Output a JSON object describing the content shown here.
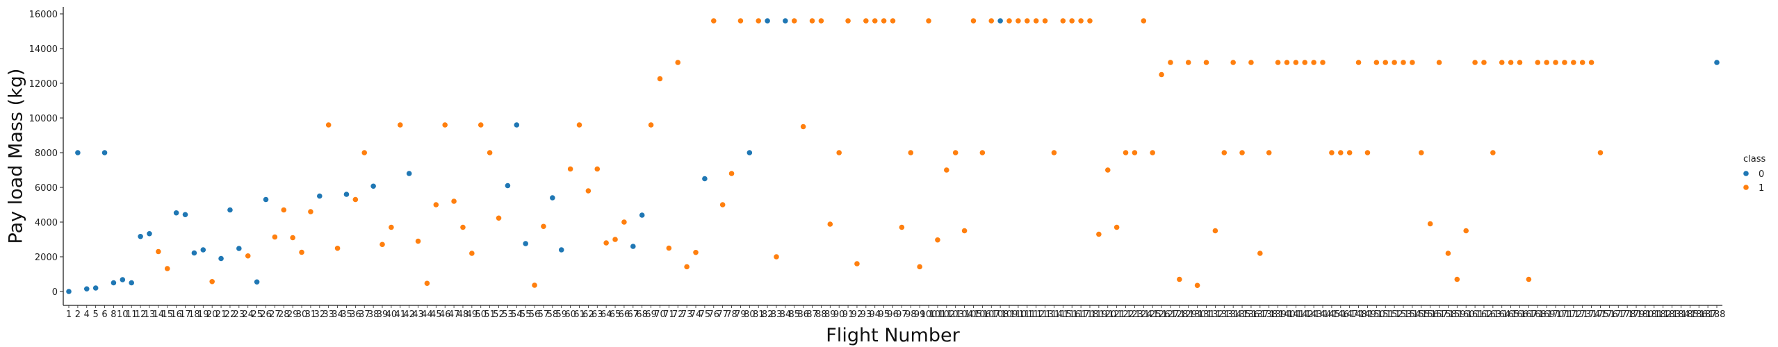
{
  "chart_data": {
    "type": "scatter",
    "title": "",
    "xlabel": "Flight Number",
    "ylabel": "Pay load Mass (kg)",
    "x_categories": [
      "1",
      "2",
      "4",
      "5",
      "6",
      "8",
      "10",
      "11",
      "12",
      "13",
      "14",
      "15",
      "16",
      "17",
      "18",
      "19",
      "20",
      "21",
      "22",
      "23",
      "24",
      "25",
      "26",
      "27",
      "28",
      "29",
      "30",
      "31",
      "32",
      "33",
      "34",
      "35",
      "36",
      "37",
      "38",
      "39",
      "40",
      "41",
      "42",
      "43",
      "44",
      "45",
      "46",
      "47",
      "48",
      "49",
      "50",
      "51",
      "52",
      "53",
      "54",
      "55",
      "56",
      "57",
      "58",
      "59",
      "60",
      "61",
      "62",
      "63",
      "64",
      "65",
      "66",
      "67",
      "68",
      "69",
      "70",
      "71",
      "72",
      "73",
      "74",
      "75",
      "76",
      "77",
      "78",
      "79",
      "80",
      "81",
      "82",
      "83",
      "84",
      "85",
      "86",
      "87",
      "88",
      "89",
      "90",
      "91",
      "92",
      "93",
      "94",
      "95",
      "96",
      "97",
      "98",
      "99",
      "100",
      "101",
      "102",
      "103",
      "104",
      "105",
      "106",
      "107",
      "108",
      "109",
      "110",
      "111",
      "112",
      "113",
      "114",
      "115",
      "116",
      "117",
      "118",
      "119",
      "120",
      "121",
      "122",
      "123",
      "124",
      "125",
      "126",
      "127",
      "128",
      "129",
      "130",
      "131",
      "132",
      "133",
      "134",
      "135",
      "136",
      "137",
      "138",
      "139",
      "140",
      "141",
      "142",
      "143",
      "144",
      "145",
      "146",
      "147",
      "148",
      "149",
      "150",
      "151",
      "152",
      "153",
      "154",
      "155",
      "156",
      "157",
      "158",
      "159",
      "160",
      "161",
      "162",
      "163",
      "164",
      "165",
      "166",
      "167",
      "168",
      "169",
      "170",
      "171",
      "172",
      "173",
      "174",
      "175",
      "176",
      "177",
      "178",
      "179",
      "180",
      "181",
      "182",
      "183",
      "184",
      "185",
      "186",
      "187",
      "188"
    ],
    "tick_labels": [
      "1",
      "2",
      "4",
      "5",
      "6",
      "8",
      "10",
      "11",
      "12",
      "13",
      "14",
      "15",
      "16",
      "17",
      "18",
      "19",
      "20",
      "21",
      "22",
      "23",
      "24",
      "25",
      "26",
      "27",
      "28",
      "29",
      "30",
      "31",
      "32",
      "33",
      "34",
      "35",
      "36",
      "37",
      "38",
      "39",
      "40",
      "41",
      "42",
      "43",
      "44",
      "45",
      "46",
      "47",
      "48",
      "49",
      "50",
      "51",
      "52",
      "53",
      "54",
      "55",
      "56",
      "57",
      "58",
      "59",
      "60",
      "61",
      "62",
      "63",
      "64",
      "65",
      "66",
      "67",
      "68",
      "69",
      "70",
      "71",
      "72",
      "73",
      "74",
      "75",
      "76",
      "77",
      "78",
      "79",
      "80",
      "81",
      "82",
      "83",
      "84",
      "85",
      "86",
      "87",
      "88",
      "89",
      "90",
      "91",
      "92",
      "93",
      "94",
      "95",
      "96",
      "97",
      "98",
      "99",
      "100",
      "101",
      "102",
      "103",
      "104",
      "105",
      "106",
      "107",
      "108",
      "109",
      "110",
      "111",
      "112",
      "113",
      "114",
      "115",
      "116",
      "117",
      "118",
      "119",
      "120",
      "121",
      "122",
      "123",
      "124",
      "125",
      "126",
      "127",
      "128",
      "129",
      "130",
      "131",
      "132",
      "133",
      "134",
      "135",
      "136",
      "137",
      "138",
      "139",
      "140",
      "141",
      "142",
      "143",
      "144",
      "145",
      "146",
      "147",
      "148",
      "149",
      "150",
      "151",
      "152",
      "153",
      "154",
      "155",
      "156",
      "157",
      "158",
      "159",
      "160",
      "161",
      "162",
      "163",
      "164",
      "165",
      "166",
      "167",
      "168",
      "169",
      "170",
      "171",
      "172",
      "173",
      "174",
      "175",
      "176",
      "177",
      "178",
      "179",
      "180",
      "181",
      "182",
      "183",
      "184",
      "185",
      "186",
      "187",
      "188"
    ],
    "ylim": [
      -800,
      16400
    ],
    "yticks": [
      0,
      2000,
      4000,
      6000,
      8000,
      10000,
      12000,
      14000,
      16000
    ],
    "legend": {
      "title": "class",
      "placement": "center-right",
      "entries": [
        "0",
        "1"
      ]
    },
    "colors": {
      "0": "#1f77b4",
      "1": "#ff7f0e"
    },
    "points": [
      {
        "x": "1",
        "y": 0,
        "class": "0"
      },
      {
        "x": "2",
        "y": 8000,
        "class": "0"
      },
      {
        "x": "4",
        "y": 150,
        "class": "0"
      },
      {
        "x": "5",
        "y": 200,
        "class": "0"
      },
      {
        "x": "6",
        "y": 8000,
        "class": "0"
      },
      {
        "x": "8",
        "y": 500,
        "class": "0"
      },
      {
        "x": "10",
        "y": 680,
        "class": "0"
      },
      {
        "x": "11",
        "y": 500,
        "class": "0"
      },
      {
        "x": "12",
        "y": 3170,
        "class": "0"
      },
      {
        "x": "13",
        "y": 3330,
        "class": "0"
      },
      {
        "x": "14",
        "y": 2300,
        "class": "1"
      },
      {
        "x": "15",
        "y": 1320,
        "class": "1"
      },
      {
        "x": "16",
        "y": 4530,
        "class": "0"
      },
      {
        "x": "17",
        "y": 4430,
        "class": "0"
      },
      {
        "x": "18",
        "y": 2220,
        "class": "0"
      },
      {
        "x": "19",
        "y": 2400,
        "class": "0"
      },
      {
        "x": "20",
        "y": 570,
        "class": "1"
      },
      {
        "x": "21",
        "y": 1900,
        "class": "0"
      },
      {
        "x": "22",
        "y": 4700,
        "class": "0"
      },
      {
        "x": "23",
        "y": 2480,
        "class": "0"
      },
      {
        "x": "24",
        "y": 2050,
        "class": "1"
      },
      {
        "x": "25",
        "y": 550,
        "class": "0"
      },
      {
        "x": "26",
        "y": 5300,
        "class": "0"
      },
      {
        "x": "27",
        "y": 3140,
        "class": "1"
      },
      {
        "x": "28",
        "y": 4700,
        "class": "1"
      },
      {
        "x": "29",
        "y": 3100,
        "class": "1"
      },
      {
        "x": "30",
        "y": 2260,
        "class": "1"
      },
      {
        "x": "31",
        "y": 4600,
        "class": "1"
      },
      {
        "x": "32",
        "y": 5500,
        "class": "0"
      },
      {
        "x": "33",
        "y": 9600,
        "class": "1"
      },
      {
        "x": "34",
        "y": 2490,
        "class": "1"
      },
      {
        "x": "35",
        "y": 5600,
        "class": "0"
      },
      {
        "x": "36",
        "y": 5300,
        "class": "1"
      },
      {
        "x": "37",
        "y": 8000,
        "class": "1"
      },
      {
        "x": "38",
        "y": 6070,
        "class": "0"
      },
      {
        "x": "39",
        "y": 2710,
        "class": "1"
      },
      {
        "x": "40",
        "y": 3700,
        "class": "1"
      },
      {
        "x": "41",
        "y": 9600,
        "class": "1"
      },
      {
        "x": "42",
        "y": 6800,
        "class": "0"
      },
      {
        "x": "43",
        "y": 2900,
        "class": "1"
      },
      {
        "x": "44",
        "y": 470,
        "class": "1"
      },
      {
        "x": "45",
        "y": 5000,
        "class": "1"
      },
      {
        "x": "46",
        "y": 9600,
        "class": "1"
      },
      {
        "x": "47",
        "y": 5200,
        "class": "1"
      },
      {
        "x": "48",
        "y": 3700,
        "class": "1"
      },
      {
        "x": "49",
        "y": 2200,
        "class": "1"
      },
      {
        "x": "50",
        "y": 9600,
        "class": "1"
      },
      {
        "x": "51",
        "y": 8000,
        "class": "1"
      },
      {
        "x": "52",
        "y": 4230,
        "class": "1"
      },
      {
        "x": "53",
        "y": 6100,
        "class": "0"
      },
      {
        "x": "54",
        "y": 9600,
        "class": "0"
      },
      {
        "x": "55",
        "y": 2760,
        "class": "0"
      },
      {
        "x": "56",
        "y": 360,
        "class": "1"
      },
      {
        "x": "57",
        "y": 3750,
        "class": "1"
      },
      {
        "x": "58",
        "y": 5400,
        "class": "0"
      },
      {
        "x": "59",
        "y": 2400,
        "class": "0"
      },
      {
        "x": "60",
        "y": 7060,
        "class": "1"
      },
      {
        "x": "61",
        "y": 9600,
        "class": "1"
      },
      {
        "x": "62",
        "y": 5800,
        "class": "1"
      },
      {
        "x": "63",
        "y": 7060,
        "class": "1"
      },
      {
        "x": "64",
        "y": 2800,
        "class": "1"
      },
      {
        "x": "65",
        "y": 3000,
        "class": "1"
      },
      {
        "x": "66",
        "y": 4000,
        "class": "1"
      },
      {
        "x": "67",
        "y": 2600,
        "class": "0"
      },
      {
        "x": "68",
        "y": 4400,
        "class": "0"
      },
      {
        "x": "69",
        "y": 9600,
        "class": "1"
      },
      {
        "x": "70",
        "y": 12260,
        "class": "1"
      },
      {
        "x": "71",
        "y": 2500,
        "class": "1"
      },
      {
        "x": "72",
        "y": 13200,
        "class": "1"
      },
      {
        "x": "73",
        "y": 1425,
        "class": "1"
      },
      {
        "x": "74",
        "y": 2250,
        "class": "1"
      },
      {
        "x": "75",
        "y": 6500,
        "class": "0"
      },
      {
        "x": "76",
        "y": 15600,
        "class": "1"
      },
      {
        "x": "77",
        "y": 5000,
        "class": "1"
      },
      {
        "x": "78",
        "y": 6800,
        "class": "1"
      },
      {
        "x": "79",
        "y": 15600,
        "class": "1"
      },
      {
        "x": "80",
        "y": 8000,
        "class": "0"
      },
      {
        "x": "81",
        "y": 15600,
        "class": "1"
      },
      {
        "x": "82",
        "y": 15600,
        "class": "0"
      },
      {
        "x": "83",
        "y": 2000,
        "class": "1"
      },
      {
        "x": "84",
        "y": 15600,
        "class": "0"
      },
      {
        "x": "85",
        "y": 15600,
        "class": "1"
      },
      {
        "x": "86",
        "y": 9500,
        "class": "1"
      },
      {
        "x": "87",
        "y": 15600,
        "class": "1"
      },
      {
        "x": "88",
        "y": 15600,
        "class": "1"
      },
      {
        "x": "89",
        "y": 3880,
        "class": "1"
      },
      {
        "x": "90",
        "y": 8000,
        "class": "1"
      },
      {
        "x": "91",
        "y": 15600,
        "class": "1"
      },
      {
        "x": "92",
        "y": 1600,
        "class": "1"
      },
      {
        "x": "93",
        "y": 15600,
        "class": "1"
      },
      {
        "x": "94",
        "y": 15600,
        "class": "1"
      },
      {
        "x": "95",
        "y": 15600,
        "class": "1"
      },
      {
        "x": "96",
        "y": 15600,
        "class": "1"
      },
      {
        "x": "97",
        "y": 3700,
        "class": "1"
      },
      {
        "x": "98",
        "y": 8000,
        "class": "1"
      },
      {
        "x": "99",
        "y": 1425,
        "class": "1"
      },
      {
        "x": "100",
        "y": 15600,
        "class": "1"
      },
      {
        "x": "101",
        "y": 2970,
        "class": "1"
      },
      {
        "x": "102",
        "y": 7000,
        "class": "1"
      },
      {
        "x": "103",
        "y": 8000,
        "class": "1"
      },
      {
        "x": "104",
        "y": 3500,
        "class": "1"
      },
      {
        "x": "105",
        "y": 15600,
        "class": "1"
      },
      {
        "x": "106",
        "y": 8000,
        "class": "1"
      },
      {
        "x": "107",
        "y": 15600,
        "class": "1"
      },
      {
        "x": "108",
        "y": 15600,
        "class": "0"
      },
      {
        "x": "109",
        "y": 15600,
        "class": "1"
      },
      {
        "x": "110",
        "y": 15600,
        "class": "1"
      },
      {
        "x": "111",
        "y": 15600,
        "class": "1"
      },
      {
        "x": "112",
        "y": 15600,
        "class": "1"
      },
      {
        "x": "113",
        "y": 15600,
        "class": "1"
      },
      {
        "x": "114",
        "y": 8000,
        "class": "1"
      },
      {
        "x": "115",
        "y": 15600,
        "class": "1"
      },
      {
        "x": "116",
        "y": 15600,
        "class": "1"
      },
      {
        "x": "117",
        "y": 15600,
        "class": "1"
      },
      {
        "x": "118",
        "y": 15600,
        "class": "1"
      },
      {
        "x": "119",
        "y": 3300,
        "class": "1"
      },
      {
        "x": "120",
        "y": 7000,
        "class": "1"
      },
      {
        "x": "121",
        "y": 3700,
        "class": "1"
      },
      {
        "x": "122",
        "y": 8000,
        "class": "1"
      },
      {
        "x": "123",
        "y": 8000,
        "class": "1"
      },
      {
        "x": "124",
        "y": 15600,
        "class": "1"
      },
      {
        "x": "125",
        "y": 8000,
        "class": "1"
      },
      {
        "x": "126",
        "y": 12500,
        "class": "1"
      },
      {
        "x": "127",
        "y": 13200,
        "class": "1"
      },
      {
        "x": "128",
        "y": 700,
        "class": "1"
      },
      {
        "x": "129",
        "y": 13200,
        "class": "1"
      },
      {
        "x": "130",
        "y": 350,
        "class": "1"
      },
      {
        "x": "131",
        "y": 13200,
        "class": "1"
      },
      {
        "x": "132",
        "y": 3500,
        "class": "1"
      },
      {
        "x": "133",
        "y": 8000,
        "class": "1"
      },
      {
        "x": "134",
        "y": 13200,
        "class": "1"
      },
      {
        "x": "135",
        "y": 8000,
        "class": "1"
      },
      {
        "x": "136",
        "y": 13200,
        "class": "1"
      },
      {
        "x": "137",
        "y": 2200,
        "class": "1"
      },
      {
        "x": "138",
        "y": 8000,
        "class": "1"
      },
      {
        "x": "139",
        "y": 13200,
        "class": "1"
      },
      {
        "x": "140",
        "y": 13200,
        "class": "1"
      },
      {
        "x": "141",
        "y": 13200,
        "class": "1"
      },
      {
        "x": "142",
        "y": 13200,
        "class": "1"
      },
      {
        "x": "143",
        "y": 13200,
        "class": "1"
      },
      {
        "x": "144",
        "y": 13200,
        "class": "1"
      },
      {
        "x": "145",
        "y": 8000,
        "class": "1"
      },
      {
        "x": "146",
        "y": 8000,
        "class": "1"
      },
      {
        "x": "147",
        "y": 8000,
        "class": "1"
      },
      {
        "x": "148",
        "y": 13200,
        "class": "1"
      },
      {
        "x": "149",
        "y": 8000,
        "class": "1"
      },
      {
        "x": "150",
        "y": 13200,
        "class": "1"
      },
      {
        "x": "151",
        "y": 13200,
        "class": "1"
      },
      {
        "x": "152",
        "y": 13200,
        "class": "1"
      },
      {
        "x": "153",
        "y": 13200,
        "class": "1"
      },
      {
        "x": "154",
        "y": 13200,
        "class": "1"
      },
      {
        "x": "155",
        "y": 8000,
        "class": "1"
      },
      {
        "x": "156",
        "y": 3900,
        "class": "1"
      },
      {
        "x": "157",
        "y": 13200,
        "class": "1"
      },
      {
        "x": "158",
        "y": 2200,
        "class": "1"
      },
      {
        "x": "159",
        "y": 700,
        "class": "1"
      },
      {
        "x": "160",
        "y": 3500,
        "class": "1"
      },
      {
        "x": "161",
        "y": 13200,
        "class": "1"
      },
      {
        "x": "162",
        "y": 13200,
        "class": "1"
      },
      {
        "x": "163",
        "y": 8000,
        "class": "1"
      },
      {
        "x": "164",
        "y": 13200,
        "class": "1"
      },
      {
        "x": "165",
        "y": 13200,
        "class": "1"
      },
      {
        "x": "166",
        "y": 13200,
        "class": "1"
      },
      {
        "x": "167",
        "y": 700,
        "class": "1"
      },
      {
        "x": "168",
        "y": 13200,
        "class": "1"
      },
      {
        "x": "169",
        "y": 13200,
        "class": "1"
      },
      {
        "x": "170",
        "y": 13200,
        "class": "1"
      },
      {
        "x": "171",
        "y": 13200,
        "class": "1"
      },
      {
        "x": "172",
        "y": 13200,
        "class": "1"
      },
      {
        "x": "173",
        "y": 13200,
        "class": "1"
      },
      {
        "x": "174",
        "y": 13200,
        "class": "1"
      },
      {
        "x": "175",
        "y": 8000,
        "class": "1"
      },
      {
        "x": "188",
        "y": 13200,
        "class": "0"
      }
    ]
  }
}
